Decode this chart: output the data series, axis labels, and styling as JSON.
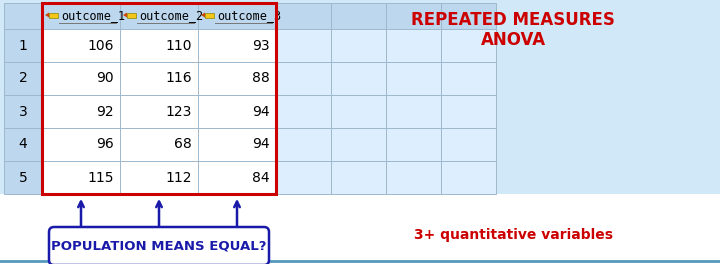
{
  "title": "REPEATED MEASURES\nANOVA",
  "title_color": "#CC0000",
  "subtitle": "3+ quantitative variables",
  "subtitle_color": "#CC0000",
  "col_headers": [
    "outcome_1",
    "outcome_2",
    "outcome_3"
  ],
  "row_labels": [
    "1",
    "2",
    "3",
    "4",
    "5"
  ],
  "table_data": [
    [
      106,
      110,
      93
    ],
    [
      90,
      116,
      88
    ],
    [
      92,
      123,
      94
    ],
    [
      96,
      68,
      94
    ],
    [
      115,
      112,
      84
    ]
  ],
  "box_label": "POPULATION MEANS EQUAL?",
  "box_label_color": "#1a1aaa",
  "box_border_color": "#1a1aaa",
  "header_bg": "#BDD7EE",
  "row_label_bg": "#BDD7EE",
  "data_bg": "#FFFFFF",
  "grid_color": "#A0B8CC",
  "highlight_border": "#CC0000",
  "extra_col_bg": "#DDEEFF",
  "arrow_color": "#1a1aaa",
  "fig_bg": "#D0E8F8",
  "pencil_body": "#F5C518",
  "pencil_tip": "#CC4400",
  "bottom_bg": "#FFFFFF"
}
